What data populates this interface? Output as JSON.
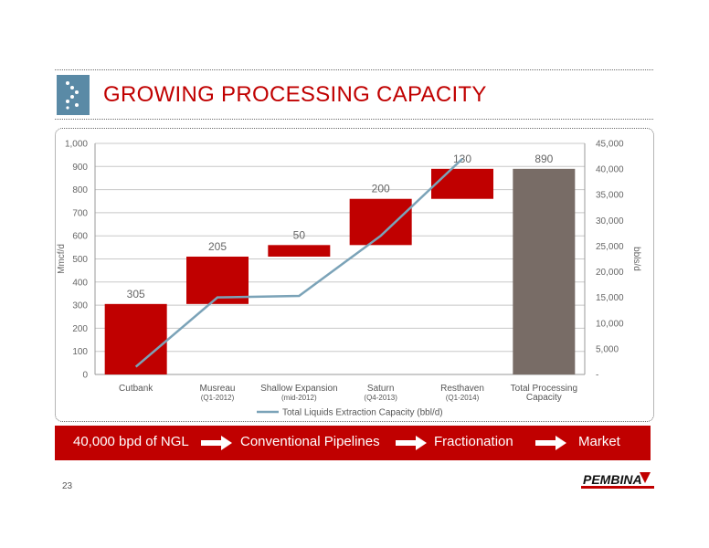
{
  "header": {
    "title": "GROWING PROCESSING CAPACITY"
  },
  "chart_data": {
    "type": "waterfall",
    "title": "",
    "ylabel": "Mmcf/d",
    "y2label": "bbls/d",
    "ylim": [
      0,
      1000
    ],
    "y2lim": [
      0,
      45000
    ],
    "y_ticks": [
      "0",
      "100",
      "200",
      "300",
      "400",
      "500",
      "600",
      "700",
      "800",
      "900",
      "1,000"
    ],
    "y2_ticks": [
      "-",
      "5,000",
      "10,000",
      "15,000",
      "20,000",
      "25,000",
      "30,000",
      "35,000",
      "40,000",
      "45,000"
    ],
    "categories": [
      {
        "label": "Cutbank",
        "sub": ""
      },
      {
        "label": "Musreau",
        "sub": "(Q1-2012)"
      },
      {
        "label": "Shallow Expansion",
        "sub": "(mid-2012)"
      },
      {
        "label": "Saturn",
        "sub": "(Q4-2013)"
      },
      {
        "label": "Resthaven",
        "sub": "(Q1-2014)"
      },
      {
        "label": "Total Processing",
        "sub": "Capacity"
      }
    ],
    "bars": [
      {
        "base": 0,
        "value": 305,
        "label": "305",
        "color": "#c00000"
      },
      {
        "base": 305,
        "value": 205,
        "label": "205",
        "color": "#c00000"
      },
      {
        "base": 510,
        "value": 50,
        "label": "50",
        "color": "#c00000"
      },
      {
        "base": 560,
        "value": 200,
        "label": "200",
        "color": "#c00000"
      },
      {
        "base": 760,
        "value": 130,
        "label": "130",
        "color": "#c00000"
      },
      {
        "base": 0,
        "value": 890,
        "label": "890",
        "color": "#786c66"
      }
    ],
    "line_series": {
      "name": "Total Liquids Extraction Capacity (bbl/d)",
      "axis": "secondary",
      "color": "#7ba3b8",
      "values": [
        1500,
        15000,
        15300,
        27000,
        42000
      ]
    },
    "grid": true,
    "legend": "bottom"
  },
  "flow": {
    "items": [
      "40,000 bpd of NGL",
      "Conventional Pipelines",
      "Fractionation",
      "Market"
    ]
  },
  "footer": {
    "page_number": "23",
    "brand": "PEMBINA"
  }
}
